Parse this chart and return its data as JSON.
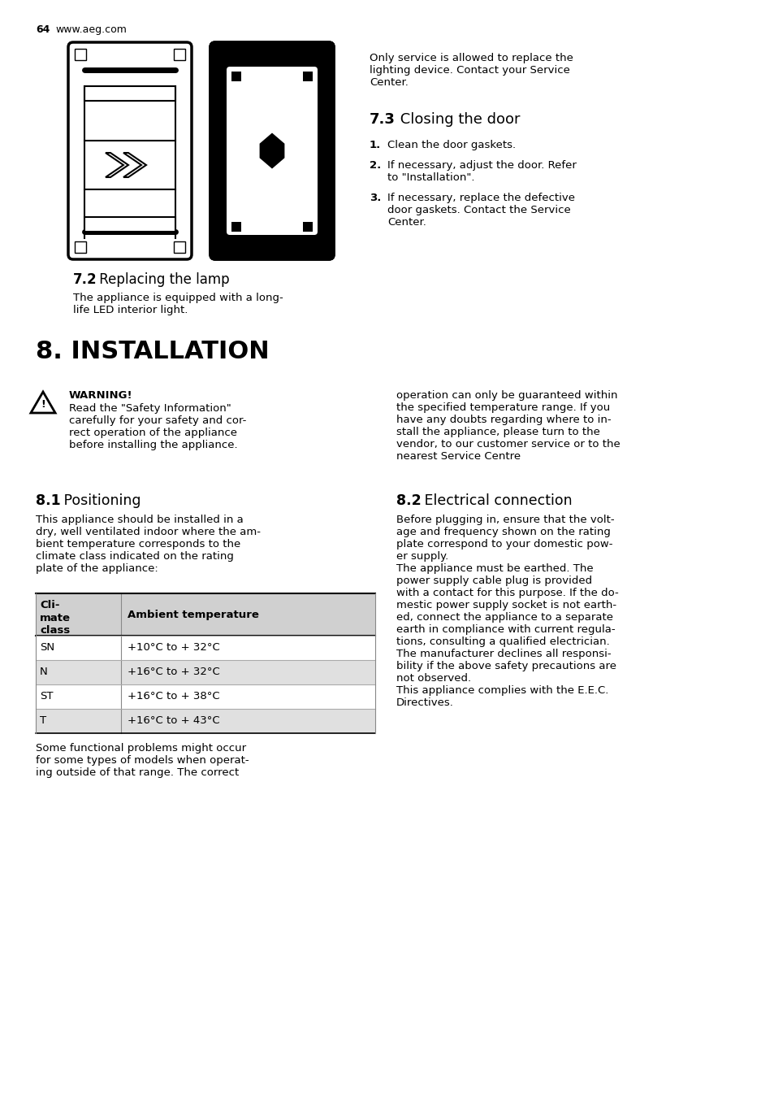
{
  "bg_color": "#ffffff",
  "text_color": "#000000",
  "page_number": "64",
  "website": "www.aeg.com",
  "section_72_title_bold": "7.2",
  "section_72_title_normal": " Replacing the lamp",
  "section_72_body": "The appliance is equipped with a long-\nlife LED interior light.",
  "section_73_title_bold": "7.3",
  "section_73_title_normal": " Closing the door",
  "section_73_intro": "Only service is allowed to replace the\nlighting device. Contact your Service\nCenter.",
  "section_73_items": [
    {
      "num": "1.",
      "text": "Clean the door gaskets."
    },
    {
      "num": "2.",
      "text": "If necessary, adjust the door. Refer\nto \"Installation\"."
    },
    {
      "num": "3.",
      "text": "If necessary, replace the defective\ndoor gaskets. Contact the Service\nCenter."
    }
  ],
  "section_8_title": "8. INSTALLATION",
  "warning_title": "WARNING!",
  "warning_body": "Read the \"Safety Information\"\ncarefully for your safety and cor-\nrect operation of the appliance\nbefore installing the appliance.",
  "warning_right_text": "operation can only be guaranteed within\nthe specified temperature range. If you\nhave any doubts regarding where to in-\nstall the appliance, please turn to the\nvendor, to our customer service or to the\nnearest Service Centre",
  "section_81_bold": "8.1",
  "section_81_normal": " Positioning",
  "section_81_body": "This appliance should be installed in a\ndry, well ventilated indoor where the am-\nbient temperature corresponds to the\nclimate class indicated on the rating\nplate of the appliance:",
  "section_81_footer": "Some functional problems might occur\nfor some types of models when operat-\ning outside of that range. The correct",
  "table_header_col1": "Cli-\nmate\nclass",
  "table_header_col2": "Ambient temperature",
  "table_rows": [
    {
      "class": "SN",
      "temp": "+10°C to + 32°C"
    },
    {
      "class": "N",
      "temp": "+16°C to + 32°C"
    },
    {
      "class": "ST",
      "temp": "+16°C to + 38°C"
    },
    {
      "class": "T",
      "temp": "+16°C to + 43°C"
    }
  ],
  "section_82_bold": "8.2",
  "section_82_normal": " Electrical connection",
  "section_82_body": "Before plugging in, ensure that the volt-\nage and frequency shown on the rating\nplate correspond to your domestic pow-\ner supply.\nThe appliance must be earthed. The\npower supply cable plug is provided\nwith a contact for this purpose. If the do-\nmestic power supply socket is not earth-\ned, connect the appliance to a separate\nearth in compliance with current regula-\ntions, consulting a qualified electrician.\nThe manufacturer declines all responsi-\nbility if the above safety precautions are\nnot observed.\nThis appliance complies with the E.E.C.\nDirectives."
}
